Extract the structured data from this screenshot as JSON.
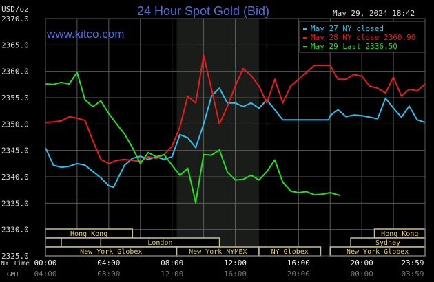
{
  "header": {
    "title": "24 Hour Spot Gold (Bid)",
    "unit": "USD/oz",
    "timestamp": "May 29, 2024 18:42",
    "site": "www.kitco.com"
  },
  "colors": {
    "background": "#000000",
    "grid": "#5a5a5a",
    "title": "#4f6fe0",
    "cyan": "#2cc0ee",
    "red": "#e81c1c",
    "green": "#22e022",
    "session": "#e8d070",
    "session_line": "#c8c090",
    "nymex_shade": "#1a1c1a"
  },
  "chart_data": {
    "type": "line",
    "title": "24 Hour Spot Gold (Bid)",
    "ylabel": "USD/oz",
    "ylim": [
      2325,
      2370
    ],
    "xlim": [
      0,
      24
    ],
    "yticks": [
      "2370.0",
      "2365.0",
      "2360.0",
      "2355.0",
      "2350.0",
      "2345.0",
      "2340.0",
      "2335.0",
      "2330.0",
      "2325.0"
    ],
    "ytick_values": [
      2370,
      2365,
      2360,
      2355,
      2350,
      2345,
      2340,
      2335,
      2330,
      2325
    ],
    "xlabel_ny": "NY Time",
    "xlabel_gmt": "GMT",
    "xticks_hours": [
      0,
      4,
      8,
      12,
      16,
      20,
      23.98
    ],
    "xticks_ny": [
      "00:00",
      "04:00",
      "08:00",
      "12:00",
      "16:00",
      "20:00",
      "23:59"
    ],
    "xticks_gmt": [
      "04:00",
      "08:00",
      "12:00",
      "16:00",
      "20:00",
      "00:00",
      "03:59"
    ],
    "grid": true,
    "nymex_shade_hours": [
      8.3,
      13.5
    ],
    "legend_placement": "top-right",
    "series": [
      {
        "name": "May 27 NY closed",
        "color_key": "cyan",
        "x": [
          0,
          0.5,
          1,
          1.5,
          2,
          2.5,
          3,
          3.5,
          4,
          4.3,
          5,
          5.5,
          6,
          6.5,
          7,
          7.5,
          8,
          8.5,
          9,
          9.5,
          10,
          10.5,
          11,
          11.5,
          12,
          12.5,
          13,
          13.5,
          14,
          14.5,
          15,
          17.9,
          18,
          18.5,
          19,
          19.5,
          20,
          20.5,
          21,
          21.5,
          22,
          22.5,
          23,
          23.5,
          24
        ],
        "values": [
          2345.5,
          2342.2,
          2341.8,
          2342,
          2342.5,
          2342.2,
          2341,
          2339.8,
          2338.3,
          2338,
          2342.2,
          2343.5,
          2343.9,
          2343.3,
          2343.8,
          2343.3,
          2343.8,
          2348,
          2347.4,
          2345.5,
          2350,
          2355.3,
          2356.8,
          2354,
          2354,
          2353.3,
          2354,
          2353,
          2354.6,
          2352.7,
          2350.8,
          2350.8,
          2351.6,
          2352.7,
          2351.4,
          2351.7,
          2351.6,
          2351.3,
          2351,
          2354.9,
          2353,
          2351.3,
          2353.4,
          2350.8,
          2350.3
        ]
      },
      {
        "name": "May 28 NY close 2360.90",
        "color_key": "red",
        "x": [
          0,
          0.5,
          1,
          1.5,
          2,
          2.5,
          3,
          3.5,
          4,
          4.5,
          5,
          5.5,
          6,
          6.5,
          7,
          7.5,
          8,
          8.5,
          9,
          9.5,
          10,
          10.5,
          11,
          11.5,
          12,
          12.5,
          13,
          13.5,
          14,
          14.5,
          15,
          15.5,
          16,
          16.5,
          17,
          17.5,
          18,
          18.5,
          19,
          19.5,
          20,
          20.5,
          21,
          21.5,
          22,
          22.5,
          23,
          23.5,
          24
        ],
        "values": [
          2350.3,
          2350.4,
          2350.6,
          2351.4,
          2351.1,
          2350.7,
          2346.8,
          2343.3,
          2342.5,
          2343.1,
          2343.3,
          2343.1,
          2342.9,
          2343.8,
          2343.5,
          2344.2,
          2345.8,
          2349.4,
          2355.3,
          2354,
          2363,
          2356.6,
          2350,
          2353.3,
          2357.2,
          2360.5,
          2359.2,
          2357.2,
          2354,
          2358.5,
          2354,
          2357.2,
          2358.5,
          2359.8,
          2361.1,
          2361.1,
          2361.1,
          2358.5,
          2358.5,
          2359.4,
          2359.1,
          2357.2,
          2356.8,
          2355.9,
          2358.9,
          2355.3,
          2356.6,
          2356.3,
          2357.6
        ]
      },
      {
        "name": "May 29 Last 2336.50",
        "color_key": "green",
        "x": [
          0,
          0.5,
          1,
          1.5,
          2,
          2.5,
          3,
          3.5,
          4,
          4.5,
          5,
          5.5,
          6,
          6.5,
          7,
          7.5,
          8,
          8.5,
          9,
          9.5,
          10,
          10.5,
          11,
          11.5,
          12,
          12.5,
          13,
          13.5,
          14,
          14.5,
          15,
          15.5,
          16,
          16.5,
          17,
          17.5,
          18,
          18.6
        ],
        "values": [
          2357.6,
          2357.5,
          2357.9,
          2357.6,
          2359.8,
          2354.6,
          2353.3,
          2354.4,
          2352,
          2350,
          2348.1,
          2345.5,
          2342.5,
          2344.6,
          2343.8,
          2344.2,
          2342.2,
          2340.3,
          2341.6,
          2335.1,
          2344.2,
          2344.1,
          2345.1,
          2340.9,
          2339.4,
          2339.5,
          2340.3,
          2339.4,
          2341,
          2343.2,
          2339,
          2337.3,
          2337,
          2337.2,
          2336.6,
          2336.7,
          2337,
          2336.5
        ]
      }
    ],
    "sessions": [
      {
        "row": 0,
        "label": "Hong Kong",
        "start": 0,
        "end": 5.5
      },
      {
        "row": 0,
        "label": "Hong Kong",
        "start": 20.8,
        "end": 24
      },
      {
        "row": 1,
        "label": "",
        "start": 0,
        "end": 1
      },
      {
        "row": 1,
        "label": "",
        "start": 1,
        "end": 3.5
      },
      {
        "row": 1,
        "label": "London",
        "start": 3.5,
        "end": 11
      },
      {
        "row": 1,
        "label": "Sydney",
        "start": 19.3,
        "end": 24
      },
      {
        "row": 2,
        "label": "New York Globex",
        "start": 0,
        "end": 8.3
      },
      {
        "row": 2,
        "label": "New York NYMEX",
        "start": 8.3,
        "end": 13.5
      },
      {
        "row": 2,
        "label": "NY Globex",
        "start": 13.5,
        "end": 17.4
      },
      {
        "row": 2,
        "label": "New York Globex",
        "start": 18,
        "end": 24
      }
    ]
  }
}
